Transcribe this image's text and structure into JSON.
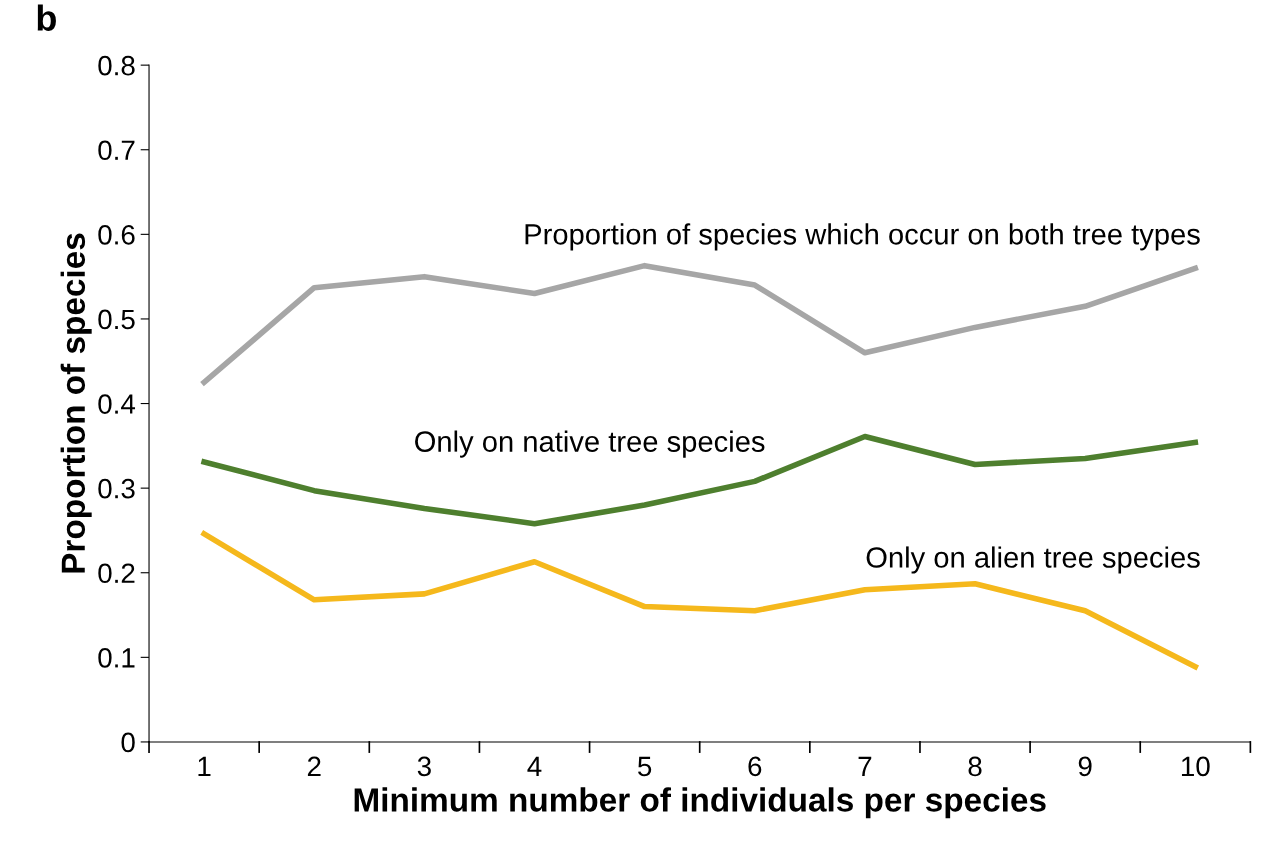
{
  "chart_data": {
    "type": "line",
    "xlabel": "Minimum number of individuals per species",
    "ylabel": "Proportion of species",
    "annotations": [
      "b"
    ],
    "categories": [
      "1",
      "2",
      "3",
      "4",
      "5",
      "6",
      "7",
      "8",
      "9",
      "10"
    ],
    "series": [
      {
        "name": "Proportion of species which occur on both tree types",
        "color": "#a6a6a6",
        "values": [
          0.425,
          0.537,
          0.55,
          0.53,
          0.563,
          0.54,
          0.46,
          0.49,
          0.515,
          0.56
        ]
      },
      {
        "name": "Only on native tree species",
        "color": "#4e7f2e",
        "values": [
          0.331,
          0.297,
          0.276,
          0.258,
          0.28,
          0.308,
          0.361,
          0.328,
          0.335,
          0.354
        ]
      },
      {
        "name": "Only on alien tree species",
        "color": "#f5b81c",
        "values": [
          0.246,
          0.168,
          0.175,
          0.213,
          0.16,
          0.155,
          0.18,
          0.187,
          0.155,
          0.089
        ]
      }
    ],
    "ylim": [
      0,
      0.8
    ],
    "yticks": [
      0,
      0.1,
      0.2,
      0.3,
      0.4,
      0.5,
      0.6,
      0.7,
      0.8
    ],
    "grid": false,
    "legend": false,
    "marker": "none",
    "line_style": "solid"
  }
}
